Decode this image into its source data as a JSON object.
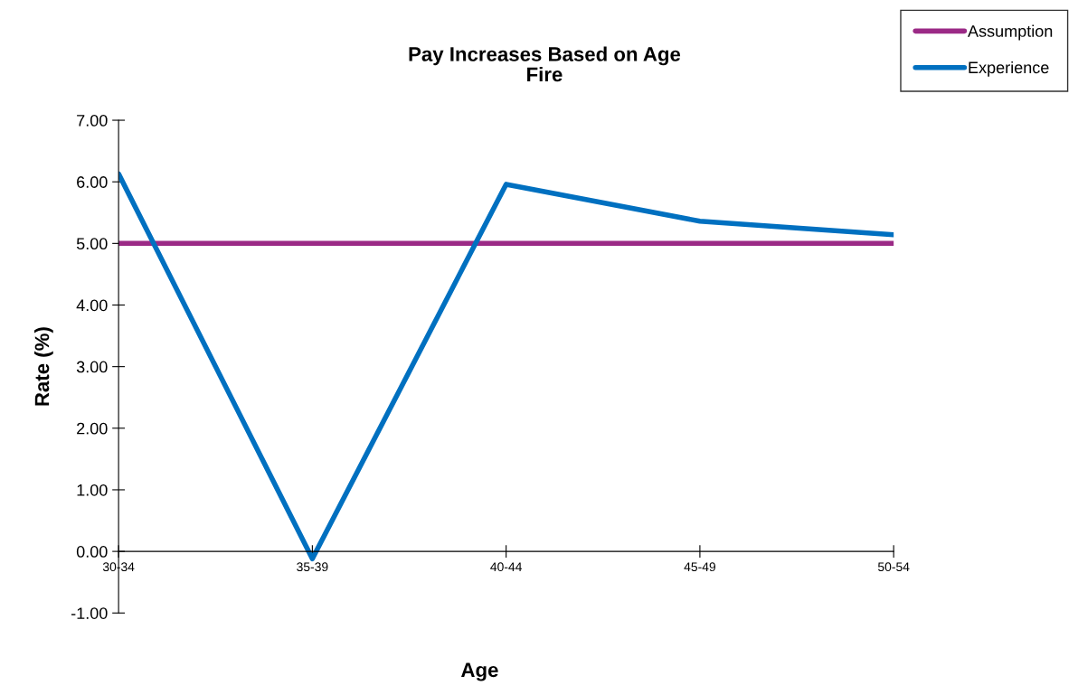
{
  "chart_data": {
    "type": "line",
    "title": "Pay Increases Based on Age\nFire",
    "xlabel": "Age",
    "ylabel": "Rate (%)",
    "categories": [
      "30-34",
      "35-39",
      "40-44",
      "45-49",
      "50-54"
    ],
    "series": [
      {
        "name": "Assumption",
        "color": "#9b2a86",
        "values": [
          5.0,
          5.0,
          5.0,
          5.0,
          5.0
        ]
      },
      {
        "name": "Experience",
        "color": "#0070c0",
        "values": [
          6.13,
          -0.12,
          5.96,
          5.36,
          5.14
        ]
      }
    ],
    "ylim": [
      -1,
      7
    ],
    "yticks": [
      {
        "value": -1,
        "label": "-1.00"
      },
      {
        "value": 0,
        "label": "0.00"
      },
      {
        "value": 1,
        "label": "1.00"
      },
      {
        "value": 2,
        "label": "2.00"
      },
      {
        "value": 3,
        "label": "3.00"
      },
      {
        "value": 4,
        "label": "4.00"
      },
      {
        "value": 5,
        "label": "5.00"
      },
      {
        "value": 6,
        "label": "6.00"
      },
      {
        "value": 7,
        "label": "7.00"
      }
    ],
    "grid": false,
    "legend": "top right",
    "marker": "none",
    "line_style": "solid"
  }
}
